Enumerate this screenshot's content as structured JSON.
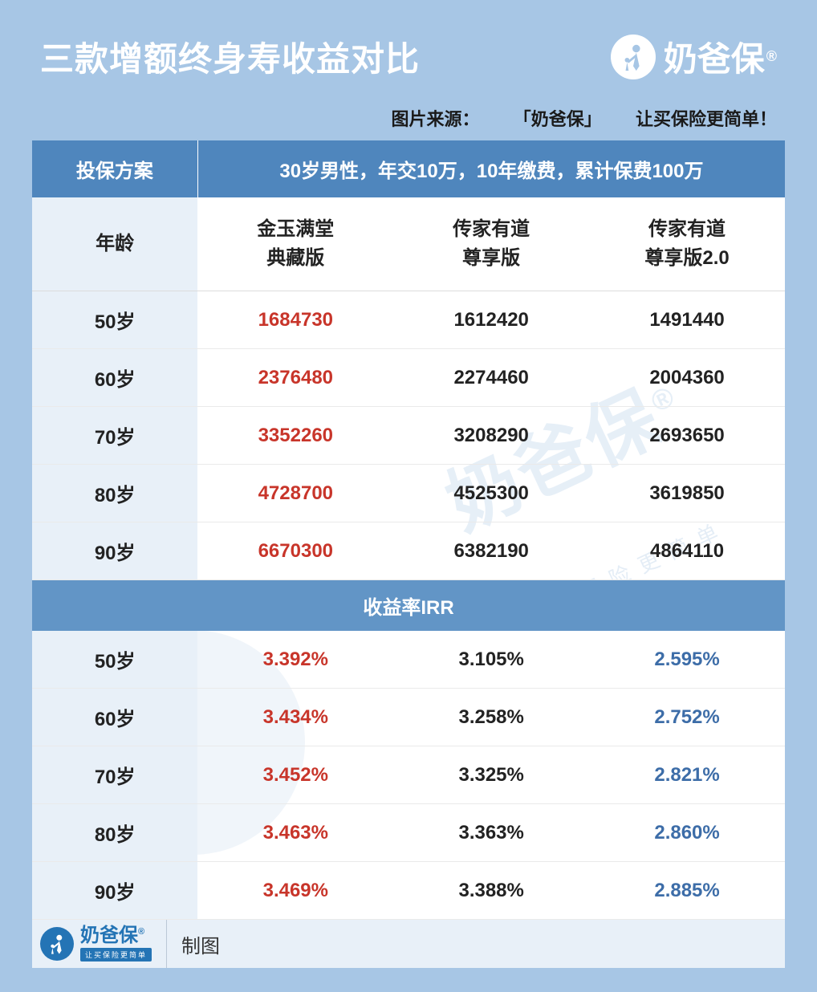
{
  "header": {
    "title": "三款增额终身寿收益对比",
    "brand": "奶爸保",
    "reg": "®"
  },
  "source_line": {
    "prefix": "图片来源：",
    "brand": "「奶爸保」",
    "slogan": "让买保险更简单！"
  },
  "table": {
    "plan_label": "投保方案",
    "plan_desc": "30岁男性，年交10万，10年缴费，累计保费100万",
    "col_headers": {
      "age": "年龄",
      "p1_l1": "金玉满堂",
      "p1_l2": "典藏版",
      "p2_l1": "传家有道",
      "p2_l2": "尊享版",
      "p3_l1": "传家有道",
      "p3_l2": "尊享版2.0"
    },
    "value_rows": [
      {
        "age": "50岁",
        "p1": "1684730",
        "p2": "1612420",
        "p3": "1491440"
      },
      {
        "age": "60岁",
        "p1": "2376480",
        "p2": "2274460",
        "p3": "2004360"
      },
      {
        "age": "70岁",
        "p1": "3352260",
        "p2": "3208290",
        "p3": "2693650"
      },
      {
        "age": "80岁",
        "p1": "4728700",
        "p2": "4525300",
        "p3": "3619850"
      },
      {
        "age": "90岁",
        "p1": "6670300",
        "p2": "6382190",
        "p3": "4864110"
      }
    ],
    "irr_section_label": "收益率IRR",
    "irr_rows": [
      {
        "age": "50岁",
        "p1": "3.392%",
        "p2": "3.105%",
        "p3": "2.595%"
      },
      {
        "age": "60岁",
        "p1": "3.434%",
        "p2": "3.258%",
        "p3": "2.752%"
      },
      {
        "age": "70岁",
        "p1": "3.452%",
        "p2": "3.325%",
        "p3": "2.821%"
      },
      {
        "age": "80岁",
        "p1": "3.463%",
        "p2": "3.363%",
        "p3": "2.860%"
      },
      {
        "age": "90岁",
        "p1": "3.469%",
        "p2": "3.388%",
        "p3": "2.885%"
      }
    ]
  },
  "footer": {
    "brand": "奶爸保",
    "brand_sub": "让买保险更简单",
    "reg": "®",
    "label": "制图"
  },
  "watermark": {
    "main": "奶爸保",
    "sub": "让买保险更简单",
    "reg": "®"
  },
  "colors": {
    "page_bg": "#a7c6e5",
    "header_text": "#ffffff",
    "row_plan_bg": "#4f86bd",
    "row_section_bg": "#6295c6",
    "col1_bg": "#e8f0f8",
    "highlight_red": "#c8352a",
    "highlight_blue": "#3d6da8",
    "brand_blue": "#2474b5"
  }
}
